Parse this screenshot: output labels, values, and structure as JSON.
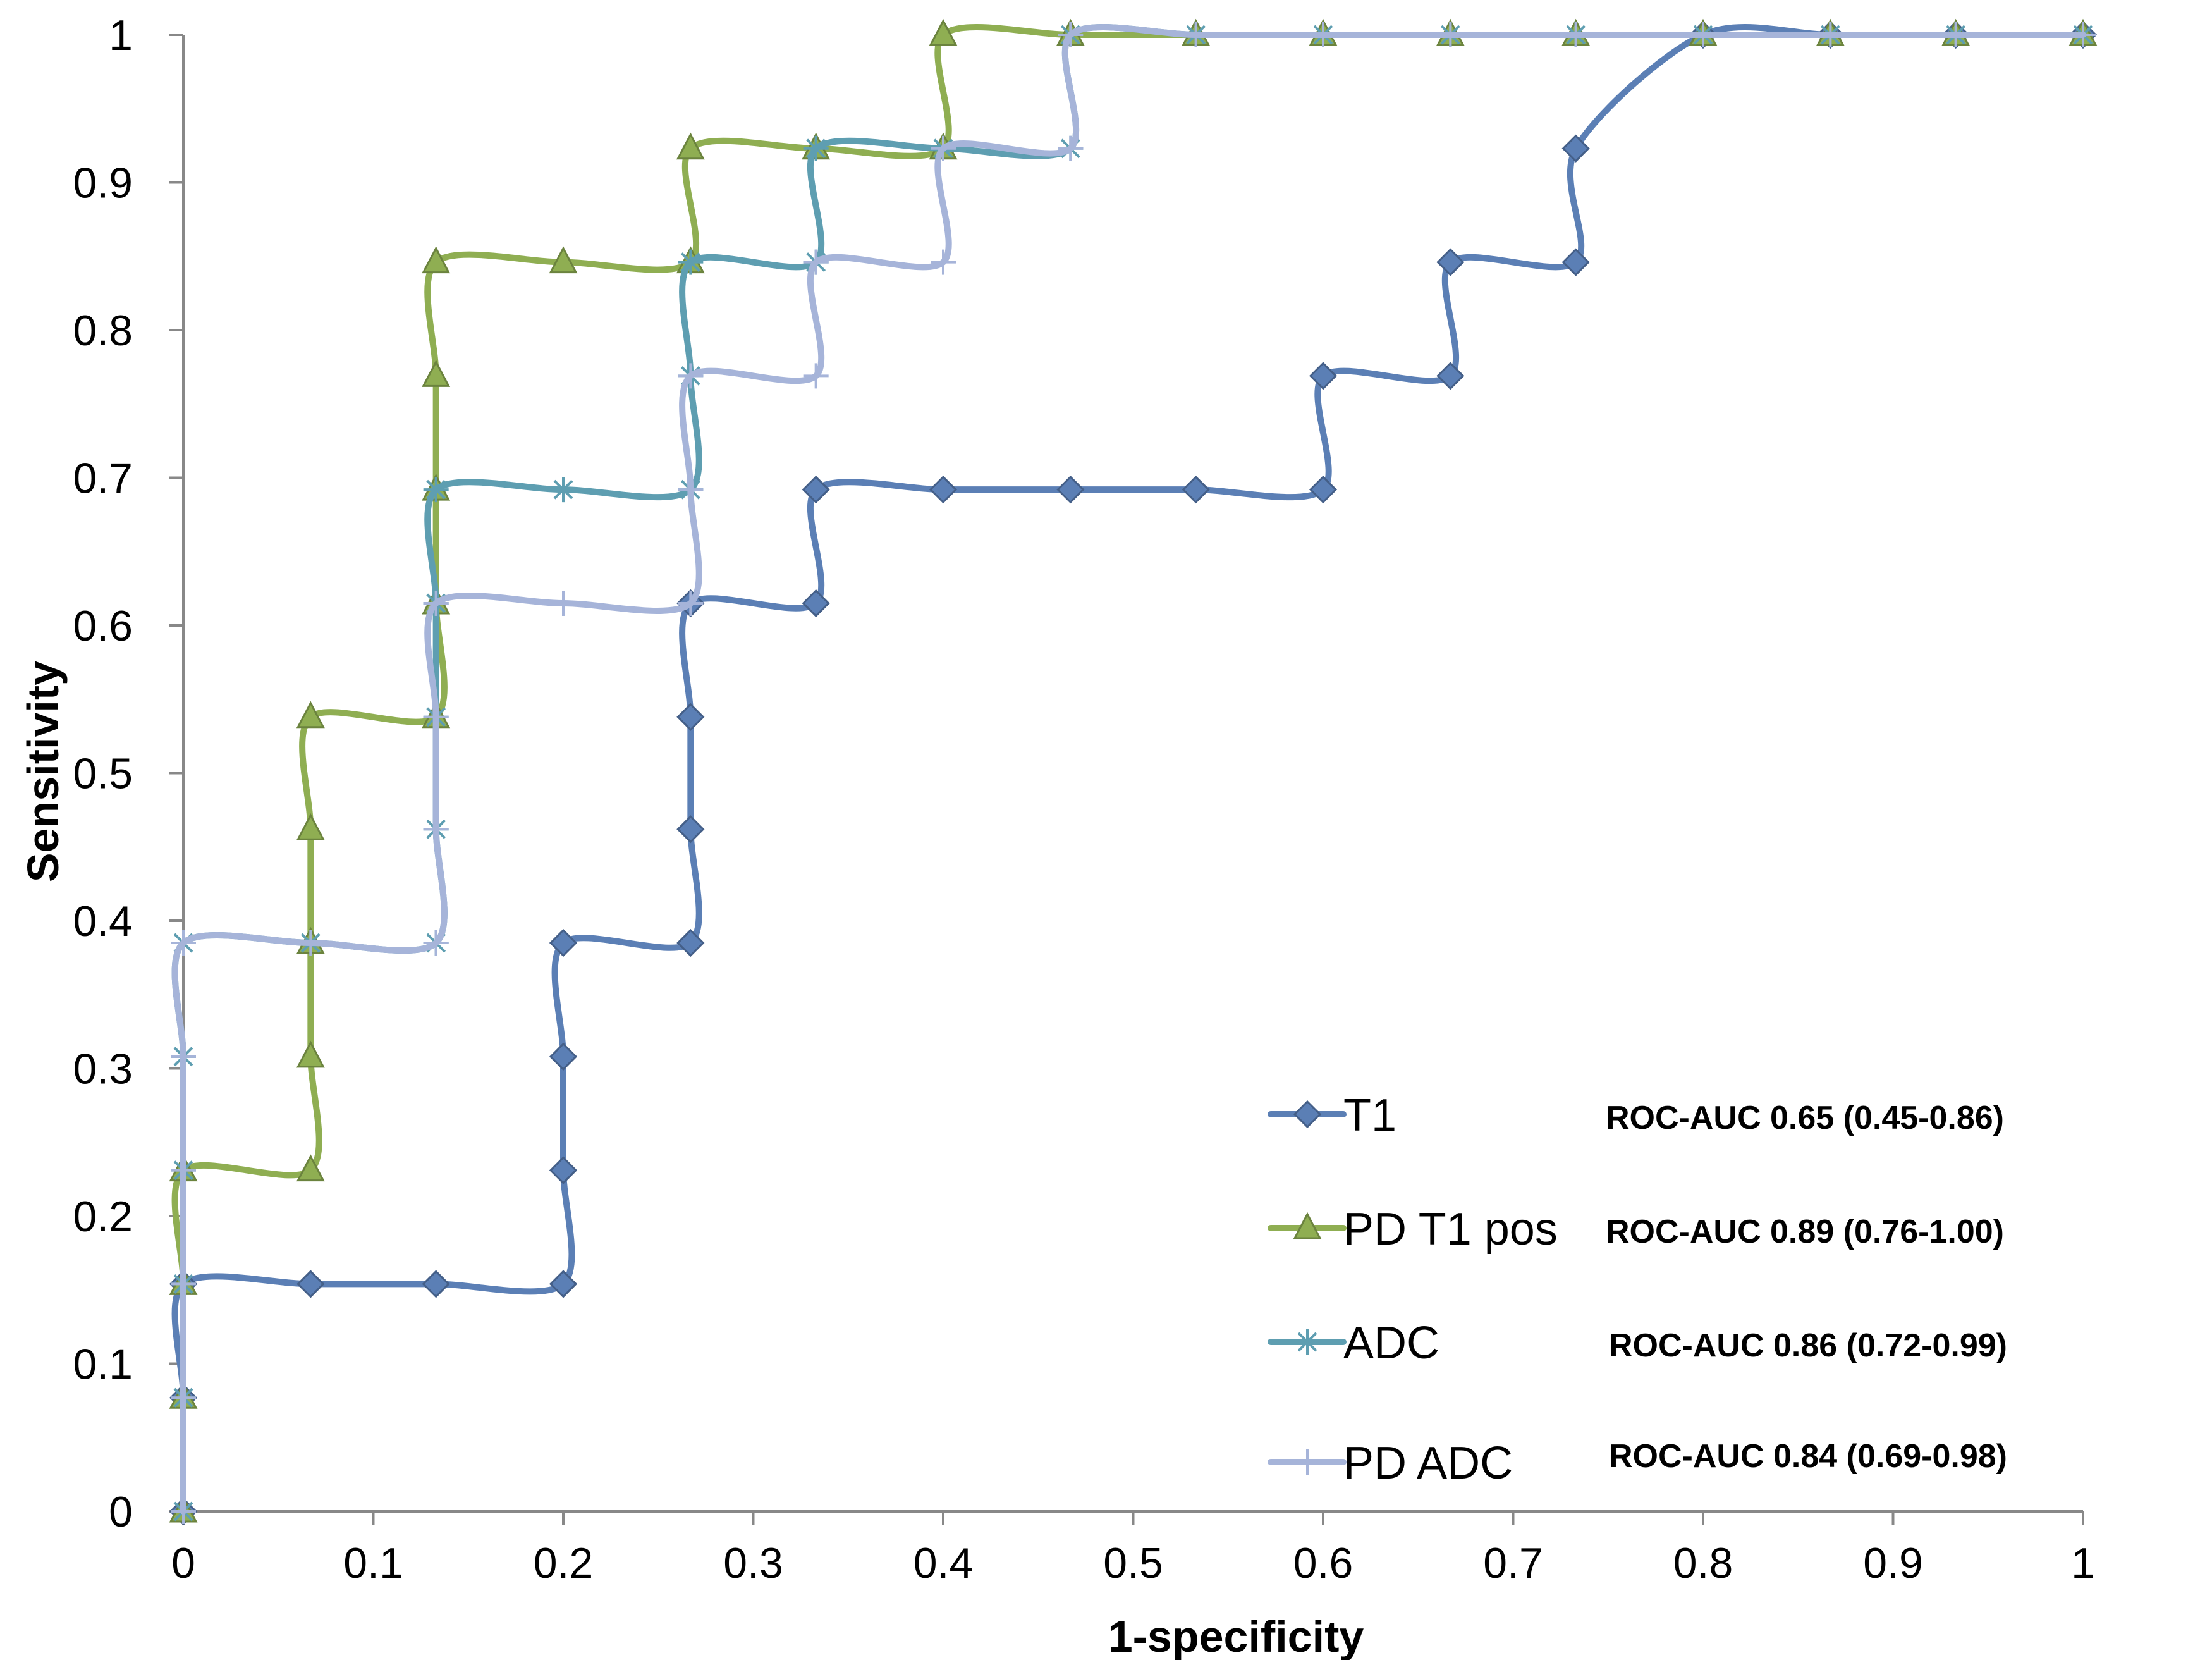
{
  "chart_data": {
    "type": "line",
    "title": "",
    "xlabel": "1-specificity",
    "ylabel": "Sensitivity",
    "xlim": [
      0,
      1
    ],
    "ylim": [
      0,
      1
    ],
    "x_ticks": [
      "0",
      "0.1",
      "0.2",
      "0.3",
      "0.4",
      "0.5",
      "0.6",
      "0.7",
      "0.8",
      "0.9",
      "1"
    ],
    "y_ticks": [
      "0",
      "0.1",
      "0.2",
      "0.3",
      "0.4",
      "0.5",
      "0.6",
      "0.7",
      "0.8",
      "0.9",
      "1"
    ],
    "grid": false,
    "legend_position": "bottom-right",
    "series": [
      {
        "name": "T1",
        "auc_label": "ROC-AUC 0.65 (0.45-0.86)",
        "color": "#5B7FB5",
        "marker": "diamond",
        "points": [
          [
            0,
            0
          ],
          [
            0,
            0.077
          ],
          [
            0,
            0.154
          ],
          [
            0.067,
            0.154
          ],
          [
            0.133,
            0.154
          ],
          [
            0.2,
            0.154
          ],
          [
            0.2,
            0.231
          ],
          [
            0.2,
            0.308
          ],
          [
            0.2,
            0.385
          ],
          [
            0.267,
            0.385
          ],
          [
            0.267,
            0.462
          ],
          [
            0.267,
            0.538
          ],
          [
            0.267,
            0.615
          ],
          [
            0.333,
            0.615
          ],
          [
            0.333,
            0.692
          ],
          [
            0.4,
            0.692
          ],
          [
            0.467,
            0.692
          ],
          [
            0.533,
            0.692
          ],
          [
            0.6,
            0.692
          ],
          [
            0.6,
            0.769
          ],
          [
            0.667,
            0.769
          ],
          [
            0.667,
            0.846
          ],
          [
            0.733,
            0.846
          ],
          [
            0.733,
            0.923
          ],
          [
            0.8,
            1
          ],
          [
            0.867,
            1
          ],
          [
            0.933,
            1
          ],
          [
            1,
            1
          ]
        ]
      },
      {
        "name": "PD T1 pos",
        "auc_label": "ROC-AUC 0.89 (0.76-1.00)",
        "color": "#8FAE52",
        "marker": "triangle",
        "points": [
          [
            0,
            0
          ],
          [
            0,
            0.077
          ],
          [
            0,
            0.154
          ],
          [
            0,
            0.231
          ],
          [
            0.067,
            0.231
          ],
          [
            0.067,
            0.308
          ],
          [
            0.067,
            0.385
          ],
          [
            0.067,
            0.462
          ],
          [
            0.067,
            0.538
          ],
          [
            0.133,
            0.538
          ],
          [
            0.133,
            0.615
          ],
          [
            0.133,
            0.692
          ],
          [
            0.133,
            0.769
          ],
          [
            0.133,
            0.846
          ],
          [
            0.2,
            0.846
          ],
          [
            0.267,
            0.846
          ],
          [
            0.267,
            0.923
          ],
          [
            0.333,
            0.923
          ],
          [
            0.4,
            0.923
          ],
          [
            0.4,
            1
          ],
          [
            0.467,
            1
          ],
          [
            0.533,
            1
          ],
          [
            0.6,
            1
          ],
          [
            0.667,
            1
          ],
          [
            0.733,
            1
          ],
          [
            0.8,
            1
          ],
          [
            0.867,
            1
          ],
          [
            0.933,
            1
          ],
          [
            1,
            1
          ]
        ]
      },
      {
        "name": "ADC",
        "auc_label": "ROC-AUC 0.86 (0.72-0.99)",
        "color": "#5E9EB1",
        "marker": "asterisk",
        "points": [
          [
            0,
            0
          ],
          [
            0,
            0.077
          ],
          [
            0,
            0.154
          ],
          [
            0,
            0.231
          ],
          [
            0,
            0.308
          ],
          [
            0,
            0.385
          ],
          [
            0.067,
            0.385
          ],
          [
            0.133,
            0.385
          ],
          [
            0.133,
            0.462
          ],
          [
            0.133,
            0.538
          ],
          [
            0.133,
            0.615
          ],
          [
            0.133,
            0.692
          ],
          [
            0.2,
            0.692
          ],
          [
            0.267,
            0.692
          ],
          [
            0.267,
            0.769
          ],
          [
            0.267,
            0.846
          ],
          [
            0.333,
            0.846
          ],
          [
            0.333,
            0.923
          ],
          [
            0.4,
            0.923
          ],
          [
            0.467,
            0.923
          ],
          [
            0.467,
            1
          ],
          [
            0.533,
            1
          ],
          [
            0.6,
            1
          ],
          [
            0.667,
            1
          ],
          [
            0.733,
            1
          ],
          [
            0.8,
            1
          ],
          [
            0.867,
            1
          ],
          [
            0.933,
            1
          ],
          [
            1,
            1
          ]
        ]
      },
      {
        "name": "PD ADC",
        "auc_label": "ROC-AUC 0.84 (0.69-0.98)",
        "color": "#A6B4D9",
        "marker": "plus",
        "points": [
          [
            0,
            0
          ],
          [
            0,
            0.077
          ],
          [
            0,
            0.154
          ],
          [
            0,
            0.231
          ],
          [
            0,
            0.308
          ],
          [
            0,
            0.385
          ],
          [
            0.067,
            0.385
          ],
          [
            0.133,
            0.385
          ],
          [
            0.133,
            0.462
          ],
          [
            0.133,
            0.538
          ],
          [
            0.133,
            0.615
          ],
          [
            0.2,
            0.615
          ],
          [
            0.267,
            0.615
          ],
          [
            0.267,
            0.692
          ],
          [
            0.267,
            0.769
          ],
          [
            0.333,
            0.769
          ],
          [
            0.333,
            0.846
          ],
          [
            0.4,
            0.846
          ],
          [
            0.4,
            0.923
          ],
          [
            0.467,
            0.923
          ],
          [
            0.467,
            1
          ],
          [
            0.533,
            1
          ],
          [
            0.6,
            1
          ],
          [
            0.667,
            1
          ],
          [
            0.733,
            1
          ],
          [
            0.8,
            1
          ],
          [
            0.867,
            1
          ],
          [
            0.933,
            1
          ],
          [
            1,
            1
          ]
        ]
      }
    ]
  }
}
